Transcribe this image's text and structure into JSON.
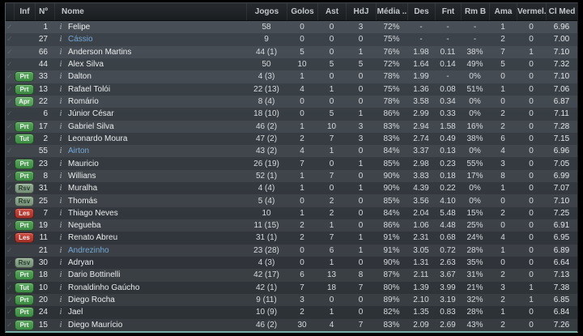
{
  "colors": {
    "panel_bottom_edge": "#7cb2a9",
    "link_name": "#73a8d5",
    "badge_green": "#4c9a52",
    "badge_sage": "#86a087",
    "badge_red": "#b83a31"
  },
  "icons": {
    "info": "i",
    "check": "✓"
  },
  "table": {
    "columns": [
      {
        "key": "inf",
        "label": "Inf"
      },
      {
        "key": "num",
        "label": "Nº"
      },
      {
        "key": "nome",
        "label": "Nome"
      },
      {
        "key": "jogos",
        "label": "Jogos"
      },
      {
        "key": "golos",
        "label": "Golos"
      },
      {
        "key": "ast",
        "label": "Ast"
      },
      {
        "key": "hdj",
        "label": "HdJ"
      },
      {
        "key": "media",
        "label": "Média .."
      },
      {
        "key": "des",
        "label": "Des"
      },
      {
        "key": "fnt",
        "label": "Fnt"
      },
      {
        "key": "rmb",
        "label": "Rm B"
      },
      {
        "key": "ama",
        "label": "Ama"
      },
      {
        "key": "vermel",
        "label": "Vermel.."
      },
      {
        "key": "clmed",
        "label": "Cl Med"
      }
    ],
    "rows": [
      {
        "inf": "",
        "num": "1",
        "name": "Felipe",
        "link": false,
        "jogos": "58",
        "golos": "0",
        "ast": "0",
        "hdj": "3",
        "media": "72%",
        "des": "-",
        "fnt": "-",
        "rmb": "-",
        "ama": "1",
        "vermel": "0",
        "clmed": "6.96"
      },
      {
        "inf": "",
        "num": "27",
        "name": "Cássio",
        "link": true,
        "jogos": "9",
        "golos": "0",
        "ast": "0",
        "hdj": "0",
        "media": "75%",
        "des": "-",
        "fnt": "-",
        "rmb": "-",
        "ama": "2",
        "vermel": "0",
        "clmed": "7.00"
      },
      {
        "inf": "",
        "num": "66",
        "name": "Ânderson Martins",
        "link": false,
        "jogos": "44 (1)",
        "golos": "5",
        "ast": "0",
        "hdj": "1",
        "media": "76%",
        "des": "1.98",
        "fnt": "0.11",
        "rmb": "38%",
        "ama": "7",
        "vermel": "1",
        "clmed": "7.10"
      },
      {
        "inf": "",
        "num": "44",
        "name": "Alex Silva",
        "link": false,
        "jogos": "50",
        "golos": "10",
        "ast": "5",
        "hdj": "5",
        "media": "72%",
        "des": "1.64",
        "fnt": "0.14",
        "rmb": "49%",
        "ama": "5",
        "vermel": "0",
        "clmed": "7.32"
      },
      {
        "inf": "Prt",
        "num": "33",
        "name": "Dalton",
        "link": false,
        "jogos": "4 (3)",
        "golos": "1",
        "ast": "0",
        "hdj": "0",
        "media": "78%",
        "des": "1.99",
        "fnt": "-",
        "rmb": "0%",
        "ama": "0",
        "vermel": "0",
        "clmed": "7.10"
      },
      {
        "inf": "Prt",
        "num": "13",
        "name": "Rafael Tolói",
        "link": false,
        "jogos": "22 (13)",
        "golos": "4",
        "ast": "1",
        "hdj": "0",
        "media": "75%",
        "des": "1.36",
        "fnt": "0.08",
        "rmb": "51%",
        "ama": "1",
        "vermel": "0",
        "clmed": "7.06"
      },
      {
        "inf": "Apr",
        "num": "22",
        "name": "Romário",
        "link": false,
        "jogos": "8 (4)",
        "golos": "0",
        "ast": "0",
        "hdj": "0",
        "media": "78%",
        "des": "3.58",
        "fnt": "0.34",
        "rmb": "0%",
        "ama": "0",
        "vermel": "0",
        "clmed": "6.87"
      },
      {
        "inf": "",
        "num": "6",
        "name": "Júnior César",
        "link": false,
        "jogos": "18 (10)",
        "golos": "0",
        "ast": "5",
        "hdj": "1",
        "media": "86%",
        "des": "2.99",
        "fnt": "0.33",
        "rmb": "0%",
        "ama": "2",
        "vermel": "0",
        "clmed": "7.11"
      },
      {
        "inf": "Prt",
        "num": "17",
        "name": "Gabriel Silva",
        "link": false,
        "jogos": "46 (2)",
        "golos": "1",
        "ast": "10",
        "hdj": "3",
        "media": "83%",
        "des": "2.94",
        "fnt": "1.58",
        "rmb": "16%",
        "ama": "2",
        "vermel": "0",
        "clmed": "7.28"
      },
      {
        "inf": "Tut",
        "num": "2",
        "name": "Leonardo Moura",
        "link": false,
        "jogos": "47 (2)",
        "golos": "2",
        "ast": "7",
        "hdj": "3",
        "media": "83%",
        "des": "2.74",
        "fnt": "0.49",
        "rmb": "38%",
        "ama": "6",
        "vermel": "0",
        "clmed": "7.15"
      },
      {
        "inf": "",
        "num": "55",
        "name": "Airton",
        "link": true,
        "jogos": "43 (2)",
        "golos": "4",
        "ast": "1",
        "hdj": "0",
        "media": "84%",
        "des": "3.37",
        "fnt": "0.13",
        "rmb": "0%",
        "ama": "4",
        "vermel": "0",
        "clmed": "6.96"
      },
      {
        "inf": "Prt",
        "num": "23",
        "name": "Mauricio",
        "link": false,
        "jogos": "26 (19)",
        "golos": "7",
        "ast": "0",
        "hdj": "1",
        "media": "85%",
        "des": "2.98",
        "fnt": "0.23",
        "rmb": "55%",
        "ama": "3",
        "vermel": "0",
        "clmed": "7.05"
      },
      {
        "inf": "Prt",
        "num": "8",
        "name": "Willians",
        "link": false,
        "jogos": "52 (1)",
        "golos": "1",
        "ast": "7",
        "hdj": "0",
        "media": "90%",
        "des": "3.83",
        "fnt": "0.18",
        "rmb": "17%",
        "ama": "8",
        "vermel": "0",
        "clmed": "6.99"
      },
      {
        "inf": "Rsv",
        "num": "31",
        "name": "Muralha",
        "link": false,
        "jogos": "4 (4)",
        "golos": "1",
        "ast": "0",
        "hdj": "1",
        "media": "90%",
        "des": "4.39",
        "fnt": "0.22",
        "rmb": "0%",
        "ama": "1",
        "vermel": "0",
        "clmed": "7.07"
      },
      {
        "inf": "Rsv",
        "num": "25",
        "name": "Thomás",
        "link": false,
        "jogos": "5 (4)",
        "golos": "0",
        "ast": "2",
        "hdj": "0",
        "media": "85%",
        "des": "3.56",
        "fnt": "4.10",
        "rmb": "0%",
        "ama": "0",
        "vermel": "0",
        "clmed": "7.10"
      },
      {
        "inf": "Les",
        "num": "7",
        "name": "Thiago Neves",
        "link": false,
        "jogos": "10",
        "golos": "1",
        "ast": "2",
        "hdj": "0",
        "media": "84%",
        "des": "2.04",
        "fnt": "5.48",
        "rmb": "15%",
        "ama": "2",
        "vermel": "0",
        "clmed": "7.25"
      },
      {
        "inf": "Prt",
        "num": "19",
        "name": "Negueba",
        "link": false,
        "jogos": "11 (15)",
        "golos": "2",
        "ast": "1",
        "hdj": "0",
        "media": "86%",
        "des": "1.06",
        "fnt": "4.48",
        "rmb": "25%",
        "ama": "0",
        "vermel": "0",
        "clmed": "6.91"
      },
      {
        "inf": "Les",
        "num": "11",
        "name": "Renato Abreu",
        "link": false,
        "jogos": "31 (1)",
        "golos": "2",
        "ast": "7",
        "hdj": "1",
        "media": "91%",
        "des": "2.31",
        "fnt": "0.68",
        "rmb": "24%",
        "ama": "4",
        "vermel": "0",
        "clmed": "6.95"
      },
      {
        "inf": "",
        "num": "21",
        "name": "Andrezinho",
        "link": true,
        "jogos": "23 (28)",
        "golos": "0",
        "ast": "6",
        "hdj": "1",
        "media": "91%",
        "des": "3.05",
        "fnt": "0.72",
        "rmb": "28%",
        "ama": "1",
        "vermel": "0",
        "clmed": "6.89"
      },
      {
        "inf": "Rsv",
        "num": "30",
        "name": "Adryan",
        "link": false,
        "jogos": "4 (3)",
        "golos": "0",
        "ast": "1",
        "hdj": "0",
        "media": "90%",
        "des": "1.31",
        "fnt": "2.63",
        "rmb": "35%",
        "ama": "0",
        "vermel": "0",
        "clmed": "6.64"
      },
      {
        "inf": "Prt",
        "num": "18",
        "name": "Dario Bottinelli",
        "link": false,
        "jogos": "42 (17)",
        "golos": "6",
        "ast": "13",
        "hdj": "8",
        "media": "87%",
        "des": "2.11",
        "fnt": "3.67",
        "rmb": "31%",
        "ama": "2",
        "vermel": "0",
        "clmed": "7.13"
      },
      {
        "inf": "Tut",
        "num": "10",
        "name": "Ronaldinho Gaúcho",
        "link": false,
        "jogos": "42 (1)",
        "golos": "7",
        "ast": "18",
        "hdj": "7",
        "media": "80%",
        "des": "1.39",
        "fnt": "3.99",
        "rmb": "21%",
        "ama": "3",
        "vermel": "1",
        "clmed": "7.38"
      },
      {
        "inf": "Prt",
        "num": "20",
        "name": "Diego Rocha",
        "link": false,
        "jogos": "9 (11)",
        "golos": "3",
        "ast": "0",
        "hdj": "0",
        "media": "89%",
        "des": "2.10",
        "fnt": "3.19",
        "rmb": "32%",
        "ama": "2",
        "vermel": "1",
        "clmed": "6.85"
      },
      {
        "inf": "Prt",
        "num": "24",
        "name": "Jael",
        "link": false,
        "jogos": "10 (9)",
        "golos": "2",
        "ast": "1",
        "hdj": "0",
        "media": "82%",
        "des": "1.35",
        "fnt": "0.83",
        "rmb": "28%",
        "ama": "1",
        "vermel": "0",
        "clmed": "6.84"
      },
      {
        "inf": "Prt",
        "num": "15",
        "name": "Diego Maurício",
        "link": false,
        "jogos": "46 (2)",
        "golos": "30",
        "ast": "4",
        "hdj": "7",
        "media": "83%",
        "des": "2.09",
        "fnt": "2.69",
        "rmb": "43%",
        "ama": "2",
        "vermel": "0",
        "clmed": "7.26"
      }
    ]
  }
}
